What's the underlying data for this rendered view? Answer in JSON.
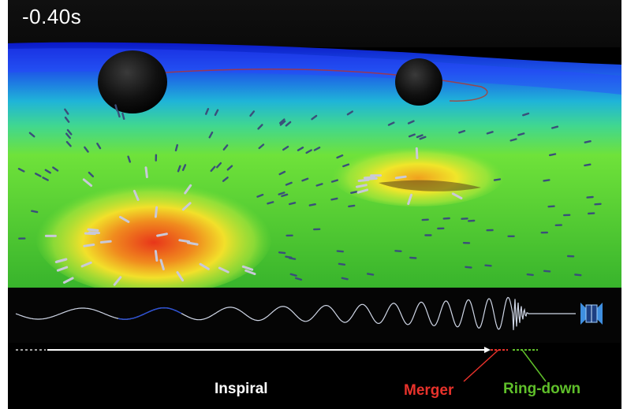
{
  "timestamp": "-0.40s",
  "phases": {
    "inspiral": "Inspiral",
    "merger": "Merger",
    "ringdown": "Ring-down"
  },
  "colors": {
    "inspiral": "#ffffff",
    "merger": "#e8322b",
    "ringdown": "#5fbf2a",
    "waveform": "#cfd6e6",
    "background": "#000000"
  },
  "icons": {
    "detector": "ligo-detector-icon"
  }
}
